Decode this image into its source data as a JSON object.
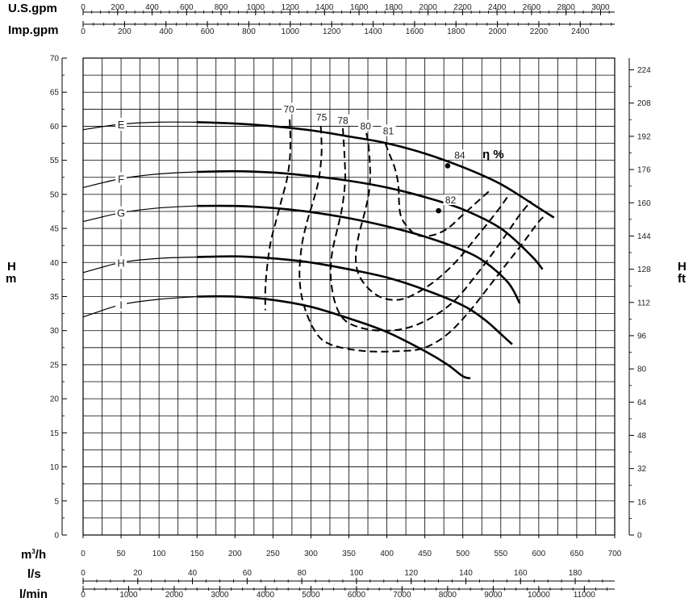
{
  "chart_data": {
    "type": "line",
    "axes": {
      "top1": {
        "label": "U.S.gpm",
        "ticks": [
          0,
          200,
          400,
          600,
          800,
          1000,
          1200,
          1400,
          1600,
          1800,
          2000,
          2200,
          2400,
          2600,
          2800,
          3000
        ]
      },
      "top2": {
        "label": "Imp.gpm",
        "ticks": [
          0,
          200,
          400,
          600,
          800,
          1000,
          1200,
          1400,
          1600,
          1800,
          2000,
          2200,
          2400
        ]
      },
      "x_main": {
        "label": "m3/h",
        "label_base": "m",
        "label_sup": "3",
        "label_tail": "/h",
        "ticks": [
          0,
          50,
          100,
          150,
          200,
          250,
          300,
          350,
          400,
          450,
          500,
          550,
          600,
          650,
          700
        ],
        "range": [
          0,
          700
        ]
      },
      "x_ls": {
        "label": "l/s",
        "ticks": [
          0,
          20,
          40,
          60,
          80,
          100,
          120,
          140,
          160,
          180
        ]
      },
      "x_lmin": {
        "label": "l/min",
        "ticks": [
          0,
          1000,
          2000,
          3000,
          4000,
          5000,
          6000,
          7000,
          8000,
          9000,
          10000,
          11000
        ]
      },
      "y_left": {
        "label_top": "H",
        "label_bottom": "m",
        "ticks": [
          0,
          5,
          10,
          15,
          20,
          25,
          30,
          35,
          40,
          45,
          50,
          55,
          60,
          65,
          70
        ],
        "range": [
          0,
          70
        ]
      },
      "y_right": {
        "label_top": "H",
        "label_bottom": "ft",
        "ticks": [
          0,
          16,
          32,
          48,
          64,
          80,
          96,
          112,
          128,
          144,
          160,
          176,
          192,
          208,
          224
        ]
      }
    },
    "grid": true,
    "efficiency_title": "η %",
    "series": [
      {
        "name": "E",
        "label_at": [
          50,
          60.3
        ],
        "thin_to": 180,
        "points": [
          [
            0,
            59.5
          ],
          [
            50,
            60.3
          ],
          [
            100,
            60.6
          ],
          [
            150,
            60.6
          ],
          [
            200,
            60.4
          ],
          [
            250,
            60.0
          ],
          [
            300,
            59.4
          ],
          [
            350,
            58.5
          ],
          [
            400,
            57.5
          ],
          [
            450,
            56.0
          ],
          [
            500,
            54.0
          ],
          [
            550,
            51.5
          ],
          [
            600,
            48.0
          ],
          [
            620,
            46.6
          ]
        ]
      },
      {
        "name": "F",
        "label_at": [
          50,
          52.3
        ],
        "thin_to": 180,
        "points": [
          [
            0,
            51.0
          ],
          [
            50,
            52.3
          ],
          [
            100,
            53.0
          ],
          [
            150,
            53.3
          ],
          [
            200,
            53.4
          ],
          [
            250,
            53.2
          ],
          [
            300,
            52.7
          ],
          [
            350,
            52.0
          ],
          [
            400,
            51.0
          ],
          [
            450,
            49.6
          ],
          [
            500,
            47.8
          ],
          [
            550,
            45.0
          ],
          [
            590,
            41.0
          ],
          [
            605,
            39.0
          ]
        ]
      },
      {
        "name": "G",
        "label_at": [
          50,
          47.3
        ],
        "thin_to": 180,
        "points": [
          [
            0,
            46.0
          ],
          [
            50,
            47.3
          ],
          [
            100,
            48.0
          ],
          [
            150,
            48.3
          ],
          [
            200,
            48.3
          ],
          [
            250,
            48.0
          ],
          [
            300,
            47.4
          ],
          [
            350,
            46.5
          ],
          [
            400,
            45.3
          ],
          [
            450,
            43.8
          ],
          [
            500,
            41.8
          ],
          [
            530,
            40.0
          ],
          [
            560,
            37.0
          ],
          [
            575,
            34.0
          ]
        ]
      },
      {
        "name": "H",
        "label_at": [
          50,
          40.0
        ],
        "thin_to": 180,
        "points": [
          [
            0,
            38.5
          ],
          [
            50,
            40.0
          ],
          [
            100,
            40.6
          ],
          [
            150,
            40.8
          ],
          [
            200,
            40.9
          ],
          [
            250,
            40.6
          ],
          [
            300,
            40.0
          ],
          [
            350,
            39.0
          ],
          [
            400,
            37.8
          ],
          [
            450,
            36.0
          ],
          [
            500,
            33.7
          ],
          [
            530,
            31.5
          ],
          [
            550,
            29.5
          ],
          [
            565,
            28.0
          ]
        ]
      },
      {
        "name": "I",
        "label_at": [
          50,
          33.8
        ],
        "thin_to": 180,
        "points": [
          [
            0,
            32.0
          ],
          [
            50,
            33.8
          ],
          [
            100,
            34.6
          ],
          [
            150,
            35.0
          ],
          [
            200,
            35.0
          ],
          [
            250,
            34.5
          ],
          [
            300,
            33.5
          ],
          [
            350,
            31.8
          ],
          [
            400,
            29.8
          ],
          [
            450,
            27.0
          ],
          [
            480,
            25.0
          ],
          [
            500,
            23.3
          ],
          [
            510,
            23.0
          ]
        ]
      }
    ],
    "efficiency_curves": [
      {
        "label": "70",
        "label_at": [
          271,
          62.5
        ],
        "points": [
          [
            272,
            61.0
          ],
          [
            273,
            58.0
          ],
          [
            272,
            55.0
          ],
          [
            268,
            52.0
          ],
          [
            262,
            49.5
          ],
          [
            255,
            46.5
          ],
          [
            247,
            43.0
          ],
          [
            242,
            39.0
          ],
          [
            240,
            36.0
          ],
          [
            240,
            33.0
          ]
        ]
      },
      {
        "label": "75",
        "label_at": [
          314,
          61.3
        ],
        "points": [
          [
            313,
            60.0
          ],
          [
            314,
            56.0
          ],
          [
            310,
            52.0
          ],
          [
            303,
            49.0
          ],
          [
            295,
            46.0
          ],
          [
            288,
            42.5
          ],
          [
            285,
            38.0
          ],
          [
            290,
            34.0
          ],
          [
            305,
            30.0
          ],
          [
            325,
            28.0
          ],
          [
            370,
            27.0
          ],
          [
            420,
            27.0
          ],
          [
            450,
            27.5
          ],
          [
            480,
            29.5
          ],
          [
            510,
            33.0
          ],
          [
            545,
            38.0
          ],
          [
            580,
            43.0
          ],
          [
            600,
            46.0
          ],
          [
            610,
            47.0
          ]
        ]
      },
      {
        "label": "78",
        "label_at": [
          342,
          60.8
        ],
        "points": [
          [
            342,
            59.7
          ],
          [
            344,
            56.0
          ],
          [
            345,
            52.0
          ],
          [
            341,
            48.0
          ],
          [
            335,
            45.0
          ],
          [
            328,
            41.5
          ],
          [
            326,
            38.0
          ],
          [
            332,
            34.0
          ],
          [
            345,
            31.5
          ],
          [
            370,
            30.3
          ],
          [
            400,
            30.0
          ],
          [
            430,
            30.5
          ],
          [
            460,
            32.0
          ],
          [
            490,
            34.5
          ],
          [
            520,
            38.5
          ],
          [
            550,
            43.0
          ],
          [
            575,
            47.0
          ],
          [
            590,
            49.0
          ]
        ]
      },
      {
        "label": "80",
        "label_at": [
          372,
          60.0
        ],
        "points": [
          [
            373,
            59.0
          ],
          [
            376,
            57.0
          ],
          [
            378,
            53.0
          ],
          [
            376,
            50.0
          ],
          [
            370,
            47.0
          ],
          [
            363,
            44.0
          ],
          [
            359,
            41.0
          ],
          [
            362,
            38.5
          ],
          [
            373,
            36.5
          ],
          [
            390,
            35.0
          ],
          [
            410,
            34.5
          ],
          [
            430,
            35.0
          ],
          [
            460,
            37.0
          ],
          [
            490,
            40.0
          ],
          [
            520,
            44.0
          ],
          [
            545,
            47.5
          ],
          [
            560,
            49.8
          ]
        ]
      },
      {
        "label": "81",
        "label_at": [
          402,
          59.3
        ],
        "points": [
          [
            398,
            57.5
          ],
          [
            403,
            56.0
          ],
          [
            410,
            54.0
          ],
          [
            415,
            51.5
          ],
          [
            416,
            49.0
          ],
          [
            418,
            47.0
          ],
          [
            425,
            45.5
          ],
          [
            440,
            44.0
          ],
          [
            460,
            44.0
          ],
          [
            480,
            45.0
          ],
          [
            500,
            47.0
          ],
          [
            520,
            49.0
          ],
          [
            535,
            50.5
          ]
        ]
      }
    ],
    "efficiency_markers": [
      {
        "label": "84",
        "q": 480,
        "h": 54.2
      },
      {
        "label": "82",
        "q": 468,
        "h": 47.6
      }
    ]
  }
}
